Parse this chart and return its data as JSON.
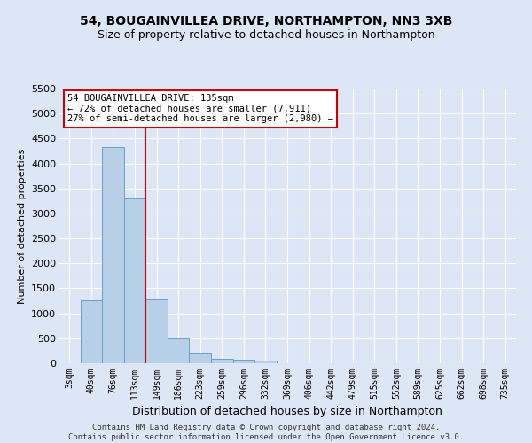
{
  "title": "54, BOUGAINVILLEA DRIVE, NORTHAMPTON, NN3 3XB",
  "subtitle": "Size of property relative to detached houses in Northampton",
  "xlabel": "Distribution of detached houses by size in Northampton",
  "ylabel": "Number of detached properties",
  "footer_line1": "Contains HM Land Registry data © Crown copyright and database right 2024.",
  "footer_line2": "Contains public sector information licensed under the Open Government Licence v3.0.",
  "bar_labels": [
    "3sqm",
    "40sqm",
    "76sqm",
    "113sqm",
    "149sqm",
    "186sqm",
    "223sqm",
    "259sqm",
    "296sqm",
    "332sqm",
    "369sqm",
    "406sqm",
    "442sqm",
    "479sqm",
    "515sqm",
    "552sqm",
    "589sqm",
    "625sqm",
    "662sqm",
    "698sqm",
    "735sqm"
  ],
  "bar_values": [
    0,
    1260,
    4330,
    3300,
    1280,
    490,
    215,
    90,
    65,
    50,
    0,
    0,
    0,
    0,
    0,
    0,
    0,
    0,
    0,
    0,
    0
  ],
  "bar_color": "#b8cfe8",
  "bar_edge_color": "#6a9fc8",
  "vline_color": "#cc0000",
  "vline_x": 3.5,
  "annotation_line1": "54 BOUGAINVILLEA DRIVE: 135sqm",
  "annotation_line2": "← 72% of detached houses are smaller (7,911)",
  "annotation_line3": "27% of semi-detached houses are larger (2,980) →",
  "ylim": [
    0,
    5500
  ],
  "yticks": [
    0,
    500,
    1000,
    1500,
    2000,
    2500,
    3000,
    3500,
    4000,
    4500,
    5000,
    5500
  ],
  "background_color": "#dce6f5",
  "plot_background": "#dce6f5",
  "grid_color": "#ffffff",
  "title_fontsize": 10,
  "subtitle_fontsize": 9,
  "ylabel_fontsize": 8,
  "xlabel_fontsize": 9,
  "tick_fontsize": 7,
  "footer_fontsize": 6.5
}
